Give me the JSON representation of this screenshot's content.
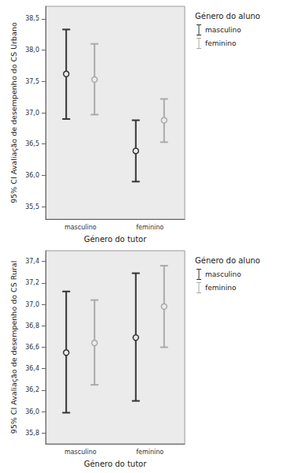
{
  "chart_data": [
    {
      "type": "errorbar",
      "x_label": "Género do tutor",
      "y_label": "95% CI Avaliação de desempenho do CS Urbano",
      "legend_title": "Género do aluno",
      "legend": "right",
      "grid": false,
      "marker": "circle",
      "categories": [
        "masculino",
        "feminino"
      ],
      "series": [
        {
          "name": "masculino",
          "color": "#333333",
          "values": [
            37.62,
            36.39
          ],
          "ci_low": [
            36.9,
            35.9
          ],
          "ci_high": [
            38.33,
            36.88
          ]
        },
        {
          "name": "feminino",
          "color": "#aaaaaa",
          "values": [
            37.53,
            36.88
          ],
          "ci_low": [
            36.97,
            36.53
          ],
          "ci_high": [
            38.1,
            37.22
          ]
        }
      ],
      "ylim": [
        35.3,
        38.7
      ],
      "yticks": [
        {
          "value": 35.5,
          "label": "35,5"
        },
        {
          "value": 36,
          "label": "36,0"
        },
        {
          "value": 36.5,
          "label": "36,5"
        },
        {
          "value": 37,
          "label": "37,0"
        },
        {
          "value": 37.5,
          "label": "37,5"
        },
        {
          "value": 38,
          "label": "38,0"
        },
        {
          "value": 38.5,
          "label": "38,5"
        }
      ]
    },
    {
      "type": "errorbar",
      "x_label": "Género do tutor",
      "y_label": "95% CI Avaliação de desempenho do CS Rural",
      "legend_title": "Género do aluno",
      "legend": "right",
      "grid": false,
      "marker": "circle",
      "categories": [
        "masculino",
        "feminino"
      ],
      "series": [
        {
          "name": "masculino",
          "color": "#333333",
          "values": [
            36.55,
            36.69
          ],
          "ci_low": [
            35.99,
            36.1
          ],
          "ci_high": [
            37.12,
            37.29
          ]
        },
        {
          "name": "feminino",
          "color": "#aaaaaa",
          "values": [
            36.64,
            36.98
          ],
          "ci_low": [
            36.25,
            36.6
          ],
          "ci_high": [
            37.04,
            37.36
          ]
        }
      ],
      "ylim": [
        35.7,
        37.5
      ],
      "yticks": [
        {
          "value": 35.8,
          "label": "35,8"
        },
        {
          "value": 36,
          "label": "36,0"
        },
        {
          "value": 36.2,
          "label": "36,2"
        },
        {
          "value": 36.4,
          "label": "36,4"
        },
        {
          "value": 36.6,
          "label": "36,6"
        },
        {
          "value": 36.8,
          "label": "36,8"
        },
        {
          "value": 37,
          "label": "37,0"
        },
        {
          "value": 37.2,
          "label": "37,2"
        },
        {
          "value": 37.4,
          "label": "37,4"
        }
      ]
    }
  ]
}
